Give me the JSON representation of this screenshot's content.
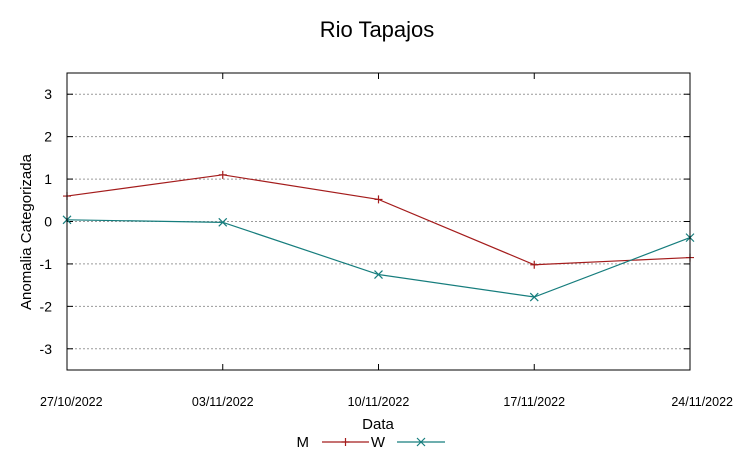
{
  "chart_data": {
    "type": "line",
    "title": "Rio Tapajos",
    "xlabel": "Data",
    "ylabel": "Anomalia Categorizada",
    "categories": [
      "27/10/2022",
      "03/11/2022",
      "10/11/2022",
      "17/11/2022",
      "24/11/2022"
    ],
    "ylim": [
      -3.5,
      3.5
    ],
    "yticks": [
      3,
      2,
      1,
      0,
      -1,
      -2,
      -3
    ],
    "grid": "horizontal dashed",
    "legend_position": "bottom",
    "series": [
      {
        "name": "M",
        "color": "#a41c1c",
        "marker": "plus",
        "values": [
          0.6,
          1.1,
          0.52,
          -1.02,
          -0.85
        ]
      },
      {
        "name": "W",
        "color": "#167d7d",
        "marker": "x",
        "values": [
          0.04,
          -0.02,
          -1.25,
          -1.78,
          -0.38
        ]
      }
    ]
  }
}
